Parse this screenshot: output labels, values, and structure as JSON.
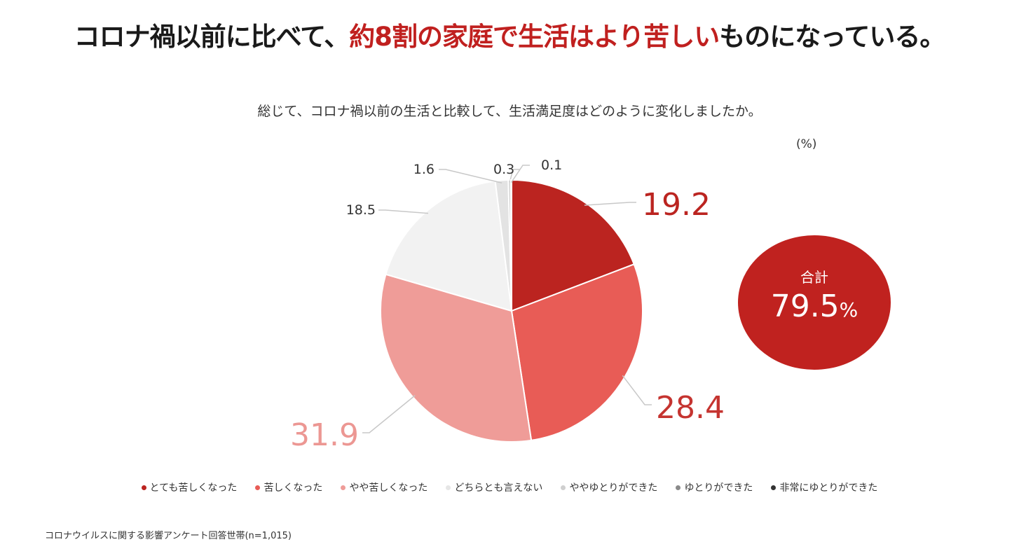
{
  "headline": {
    "part1": "コロナ禍以前に比べて、",
    "part2": "約8割の家庭で生活はより苦しい",
    "part3": "ものになっている。"
  },
  "chart_data": {
    "type": "pie",
    "title": "総じて、コロナ禍以前の生活と比較して、生活満足度はどのように変化しましたか。",
    "unit": "(%)",
    "slices": [
      {
        "label": "とても苦しくなった",
        "value": 19.2,
        "display": "19.2",
        "color": "#bb2420",
        "legend_color": "#bb2420",
        "label_color": "#bb2420",
        "label_big": true
      },
      {
        "label": "苦しくなった",
        "value": 28.4,
        "display": "28.4",
        "color": "#e85c56",
        "legend_color": "#e85c56",
        "label_color": "#c53430",
        "label_big": true
      },
      {
        "label": "やや苦しくなった",
        "value": 31.9,
        "display": "31.9",
        "color": "#ef9c98",
        "legend_color": "#ef9c98",
        "label_color": "#ec9793",
        "label_big": true
      },
      {
        "label": "どちらとも言えない",
        "value": 18.5,
        "display": "18.5",
        "color": "#f2f2f2",
        "legend_color": "#e6e6e6",
        "label_color": "#333333",
        "label_big": false
      },
      {
        "label": "ややゆとりができた",
        "value": 1.6,
        "display": "1.6",
        "color": "#e3e3e3",
        "legend_color": "#cfcfcf",
        "label_color": "#333333",
        "label_big": false
      },
      {
        "label": "ゆとりができた",
        "value": 0.3,
        "display": "0.3",
        "color": "#c8c8c8",
        "legend_color": "#8a8a8a",
        "label_color": "#333333",
        "label_big": false
      },
      {
        "label": "非常にゆとりができた",
        "value": 0.1,
        "display": "0.1",
        "color": "#b0b0b0",
        "legend_color": "#333333",
        "label_color": "#333333",
        "label_big": false
      }
    ],
    "total": {
      "label": "合計",
      "value": "79.5",
      "unit": "%"
    },
    "legend_position": "bottom",
    "source": "コロナウイルスに関する影響アンケート回答世帯(n=1,015)"
  }
}
